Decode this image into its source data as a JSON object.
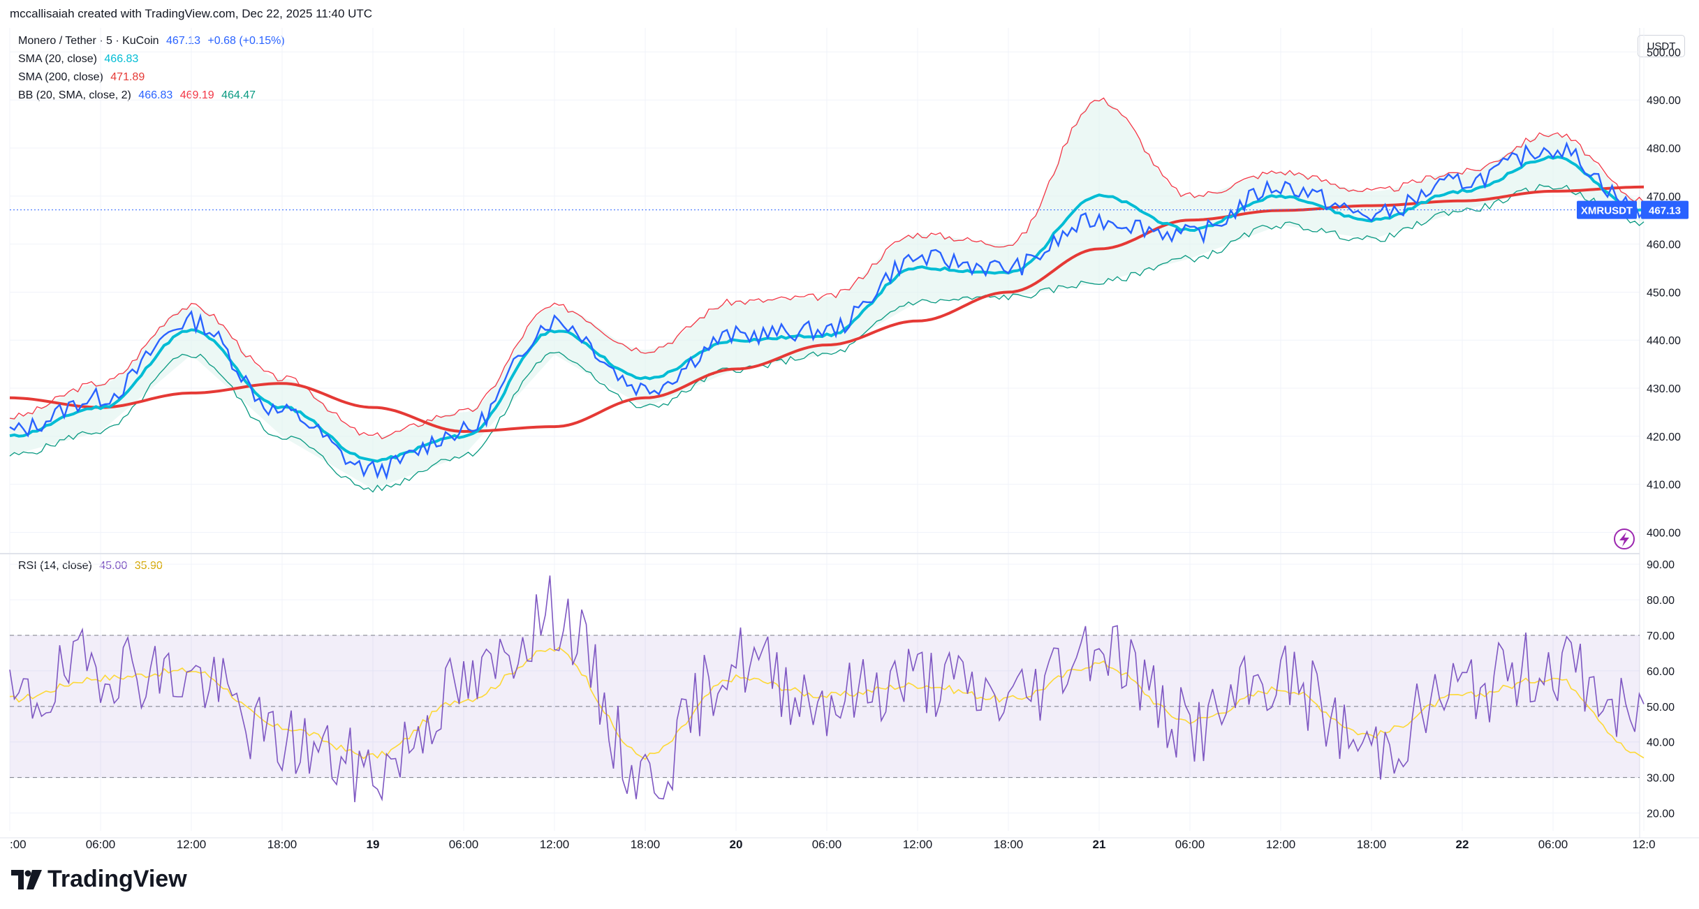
{
  "header": {
    "attribution": "mccallisaiah created with TradingView.com, Dec 22, 2025 11:40 UTC"
  },
  "legend": {
    "symbol": "Monero / Tether · 5 · KuCoin",
    "symbol_price": "467.13",
    "symbol_change": "+0.68 (+0.15%)",
    "sma20_label": "SMA (20, close)",
    "sma20_value": "466.83",
    "sma200_label": "SMA (200, close)",
    "sma200_value": "471.89",
    "bb_label": "BB (20, SMA, close, 2)",
    "bb_basis": "466.83",
    "bb_upper": "469.19",
    "bb_lower": "464.47",
    "rsi_label": "RSI (14, close)",
    "rsi_value": "45.00",
    "rsi_ma_value": "35.90"
  },
  "price_axis": {
    "unit": "USDT",
    "ticks": [
      "500.00",
      "490.00",
      "480.00",
      "470.00",
      "460.00",
      "450.00",
      "440.00",
      "430.00",
      "420.00",
      "410.00",
      "400.00"
    ],
    "tick_values": [
      500,
      490,
      480,
      470,
      460,
      450,
      440,
      430,
      420,
      410,
      400
    ],
    "last_symbol": "XMRUSDT",
    "last_value": "467.13"
  },
  "rsi_axis": {
    "ticks": [
      "90.00",
      "80.00",
      "70.00",
      "60.00",
      "50.00",
      "40.00",
      "30.00",
      "20.00"
    ],
    "tick_values": [
      90,
      80,
      70,
      60,
      50,
      40,
      30,
      20
    ],
    "band": [
      30,
      70
    ]
  },
  "time_axis": {
    "labels": [
      ":00",
      "06:00",
      "12:00",
      "18:00",
      "19",
      "06:00",
      "12:00",
      "18:00",
      "20",
      "06:00",
      "12:00",
      "18:00",
      "21",
      "06:00",
      "12:00",
      "18:00",
      "22",
      "06:00",
      "12:0"
    ],
    "bold": [
      false,
      false,
      false,
      false,
      true,
      false,
      false,
      false,
      true,
      false,
      false,
      false,
      true,
      false,
      false,
      false,
      true,
      false,
      false
    ]
  },
  "colors": {
    "price": "#2962ff",
    "sma20": "#00bcd4",
    "sma200": "#e53935",
    "bb_upper": "#f23645",
    "bb_lower": "#089981",
    "bb_fill": "#e0f4ee",
    "rsi": "#7e57c2",
    "rsi_ma": "#fdd835",
    "rsi_band": "#7e57c2"
  },
  "icons": {
    "brand_logo": "tradingview-logo-icon",
    "bolt": "lightning-icon"
  },
  "brand": {
    "name": "TradingView"
  },
  "chart_data": [
    {
      "type": "line",
      "x": [
        "Dec 18 00:00",
        "Dec 18 06:00",
        "Dec 18 12:00",
        "Dec 18 18:00",
        "Dec 19 00:00",
        "Dec 19 06:00",
        "Dec 19 12:00",
        "Dec 19 18:00",
        "Dec 20 00:00",
        "Dec 20 06:00",
        "Dec 20 12:00",
        "Dec 20 18:00",
        "Dec 21 00:00",
        "Dec 21 06:00",
        "Dec 21 12:00",
        "Dec 21 18:00",
        "Dec 22 00:00",
        "Dec 22 06:00",
        "Dec 22 12:00"
      ],
      "x_axis_labels_shown": true,
      "ylim": [
        396,
        505
      ],
      "series": [
        {
          "key": "price",
          "values": [
            421,
            428,
            444,
            425,
            413,
            421,
            444,
            430,
            441,
            442,
            457,
            455,
            465,
            462,
            472,
            466,
            473,
            480,
            467.13
          ]
        },
        {
          "key": "sma20",
          "values": [
            420,
            426,
            442,
            426,
            415,
            420,
            442,
            432,
            440,
            441,
            455,
            454,
            470,
            463,
            470,
            465,
            471,
            478,
            466.83
          ]
        },
        {
          "key": "sma200",
          "values": [
            428,
            426,
            429,
            431,
            426,
            421,
            422,
            428,
            434,
            439,
            444,
            450,
            459,
            465,
            467,
            468,
            469,
            471,
            471.89
          ]
        },
        {
          "key": "bb_upper",
          "values": [
            424,
            431,
            447,
            432,
            420,
            425,
            447,
            438,
            448,
            449,
            462,
            460,
            490,
            470,
            475,
            471,
            475,
            483,
            469.19
          ]
        },
        {
          "key": "bb_lower",
          "values": [
            416,
            421,
            437,
            420,
            409,
            416,
            437,
            426,
            434,
            437,
            448,
            449,
            452,
            457,
            464,
            461,
            467,
            472,
            464.47
          ]
        }
      ]
    },
    {
      "type": "line",
      "ylim": [
        15,
        92
      ],
      "series": [
        {
          "key": "rsi",
          "values": [
            50,
            62,
            58,
            40,
            32,
            55,
            76,
            30,
            63,
            52,
            58,
            52,
            68,
            44,
            58,
            38,
            55,
            62,
            45.0
          ]
        },
        {
          "key": "rsi_ma",
          "values": [
            52,
            58,
            60,
            44,
            36,
            52,
            66,
            36,
            58,
            53,
            56,
            52,
            62,
            46,
            55,
            42,
            53,
            58,
            35.9
          ]
        }
      ]
    }
  ]
}
